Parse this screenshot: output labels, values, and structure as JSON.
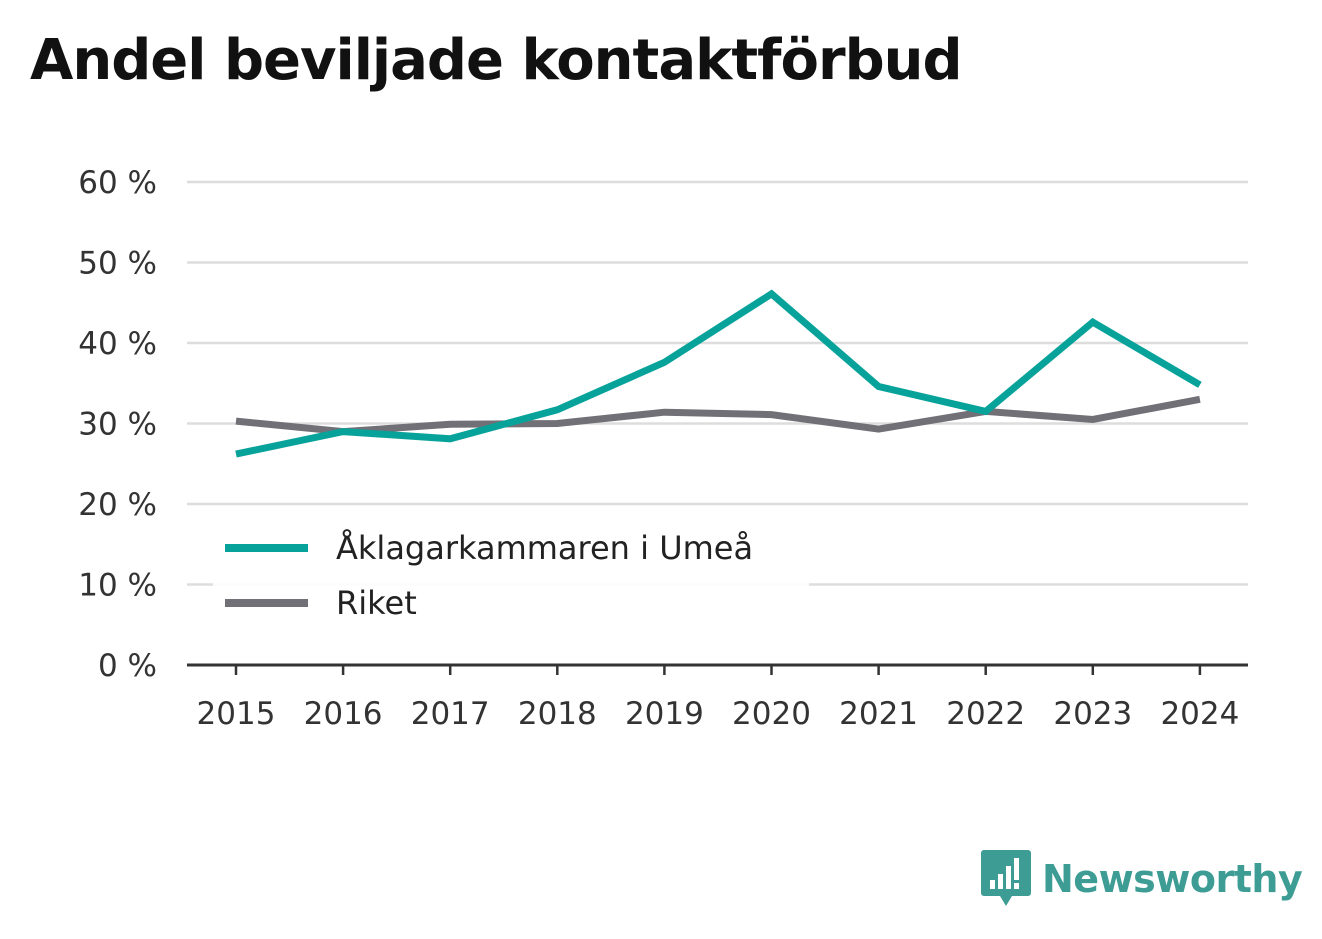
{
  "title": "Andel beviljade kontaktförbud",
  "brand": {
    "name": "Newsworthy",
    "color": "#3d9c94",
    "icon": "bar-chart-speech-bubble-icon"
  },
  "colors": {
    "series_1": "#07a39a",
    "series_2": "#727077",
    "grid": "#dddddd",
    "axis": "#333333"
  },
  "chart_data": {
    "type": "line",
    "title": "Andel beviljade kontaktförbud",
    "xlabel": "",
    "ylabel": "",
    "categories": [
      "2015",
      "2016",
      "2017",
      "2018",
      "2019",
      "2020",
      "2021",
      "2022",
      "2023",
      "2024"
    ],
    "series": [
      {
        "name": "Åklagarkammaren i Umeå",
        "values": [
          26.2,
          29.0,
          28.1,
          31.7,
          37.6,
          46.1,
          34.6,
          31.5,
          42.6,
          34.8
        ]
      },
      {
        "name": "Riket",
        "values": [
          30.3,
          29.0,
          29.9,
          30.0,
          31.4,
          31.1,
          29.3,
          31.5,
          30.5,
          33.0
        ]
      }
    ],
    "ylim": [
      0,
      60
    ],
    "yticks": [
      0,
      10,
      20,
      30,
      40,
      50,
      60
    ],
    "ytick_labels": [
      "0 %",
      "10 %",
      "20 %",
      "30 %",
      "40 %",
      "50 %",
      "60 %"
    ],
    "grid": true,
    "legend": "bottom-left"
  }
}
